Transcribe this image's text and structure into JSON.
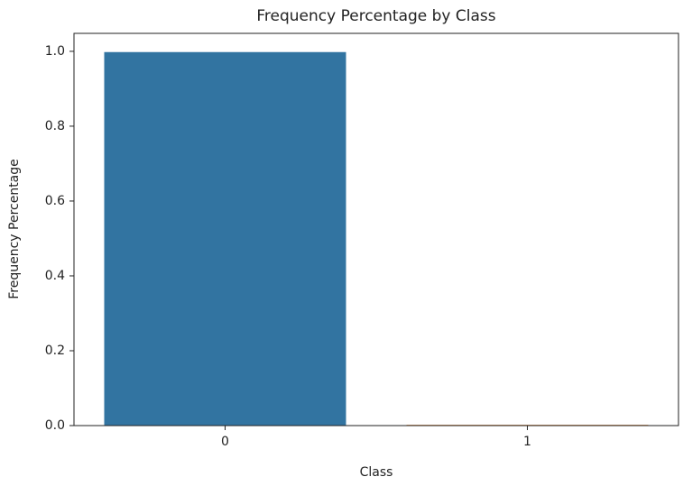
{
  "chart_data": {
    "type": "bar",
    "title": "Frequency Percentage by Class",
    "x_label": "Class",
    "y_label": "Frequency Percentage",
    "categories": [
      "0",
      "1"
    ],
    "values": [
      0.998,
      0.002
    ],
    "colors": [
      "#3274a1",
      "#e1812c"
    ],
    "ylim": [
      0,
      1.048
    ],
    "yticks": [
      {
        "value": 0,
        "label": "0.0"
      },
      0.2,
      0.4,
      0.6,
      0.8,
      {
        "value": 1,
        "label": "1.0"
      }
    ],
    "grid": false
  }
}
